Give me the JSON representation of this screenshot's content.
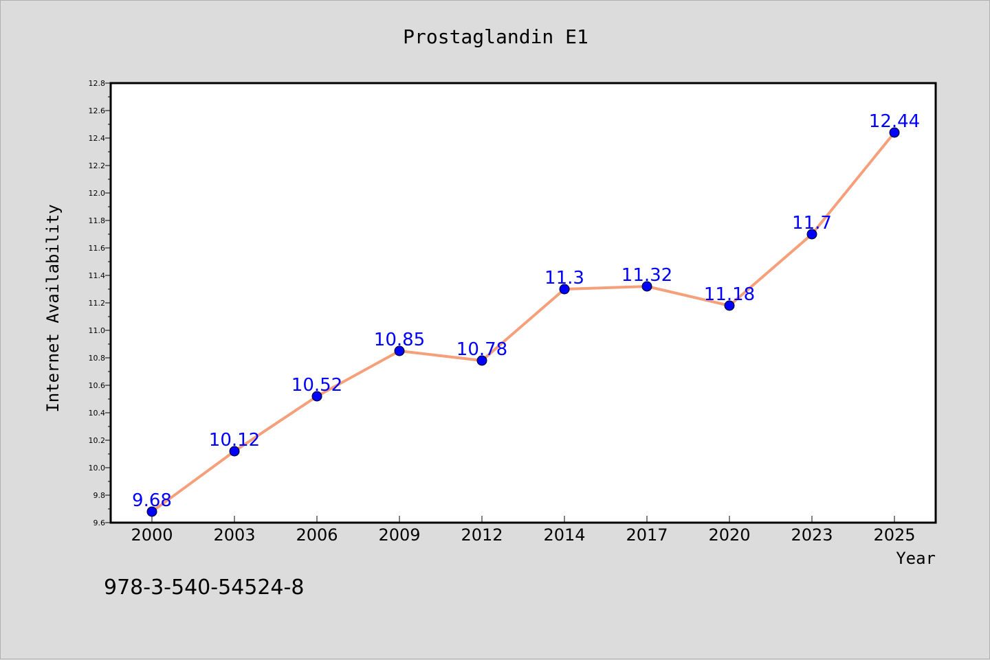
{
  "chart_data": {
    "type": "line",
    "title": "Prostaglandin E1",
    "xlabel": "Year",
    "ylabel": "Internet Availability",
    "categories": [
      "2000",
      "2003",
      "2006",
      "2009",
      "2012",
      "2014",
      "2017",
      "2020",
      "2023",
      "2025"
    ],
    "series": [
      {
        "values": [
          9.68,
          10.12,
          10.52,
          10.85,
          10.78,
          11.3,
          11.32,
          11.18,
          11.7,
          12.44
        ],
        "labels": [
          "9.68",
          "10.12",
          "10.52",
          "10.85",
          "10.78",
          "11.3",
          "11.32",
          "11.18",
          "11.7",
          "12.44"
        ],
        "line_color": "#f5a07a",
        "marker_color": "#0000ff",
        "label_color": "#0000ff"
      }
    ],
    "ylim": [
      9.6,
      12.8
    ],
    "yticks": [
      "9.6",
      "9.8",
      "10.0",
      "10.2",
      "10.4",
      "10.6",
      "10.8",
      "11.0",
      "11.2",
      "11.4",
      "11.6",
      "11.8",
      "12.0",
      "12.2",
      "12.4",
      "12.6",
      "12.8"
    ],
    "grid": false,
    "legend": "none"
  },
  "footer_text": "978-3-540-54524-8",
  "colors": {
    "background": "#dcdcdc",
    "plot_background": "#ffffff"
  }
}
